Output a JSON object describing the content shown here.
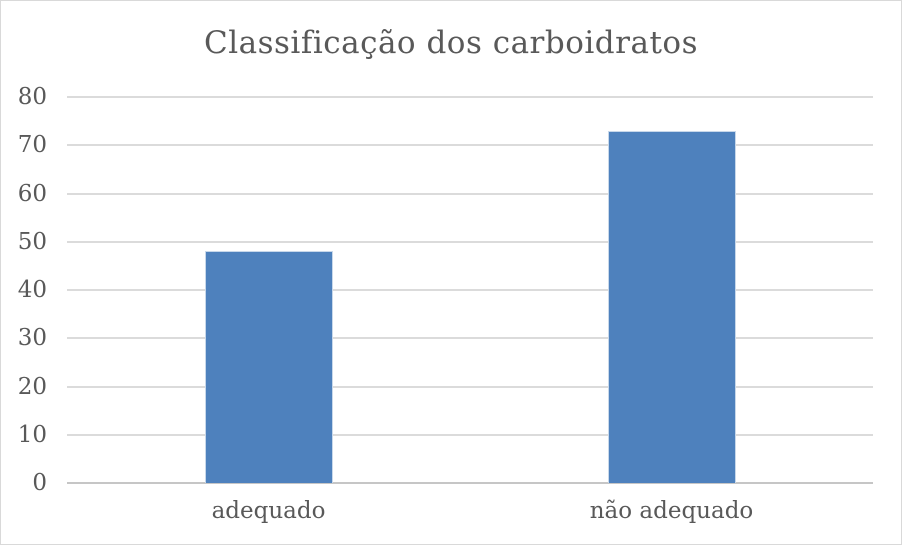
{
  "chart": {
    "title": "Classificação dos carboidratos"
  },
  "chart_data": {
    "type": "bar",
    "title": "Classificação dos carboidratos",
    "categories": [
      "adequado",
      "não adequado"
    ],
    "values": [
      48,
      73
    ],
    "xlabel": "",
    "ylabel": "",
    "ylim": [
      0,
      80
    ],
    "ytick_step": 10,
    "ytick_labels": [
      "0",
      "10",
      "20",
      "30",
      "40",
      "50",
      "60",
      "70",
      "80"
    ],
    "grid": true,
    "legend": false,
    "colors": {
      "bar_fill": "#4E81BD",
      "bar_edge": "#c8d8ea",
      "gridline": "#dbdbdb",
      "axis_line": "#c6c6c6",
      "text": "#595959",
      "background": "#ffffff",
      "frame_border": "#d9d9d9"
    }
  }
}
